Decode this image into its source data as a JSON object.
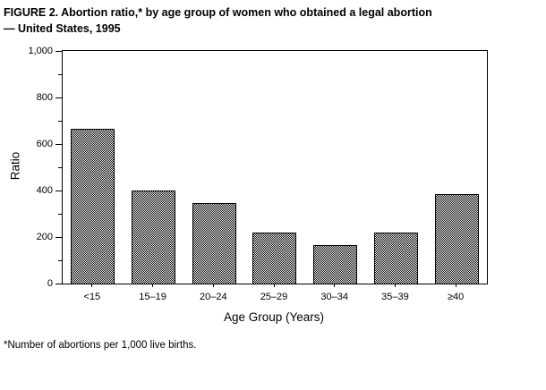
{
  "figure": {
    "title": "FIGURE 2. Abortion ratio,* by age group of women who obtained a legal abortion\n— United States, 1995",
    "footnote": "*Number of abortions per 1,000 live births."
  },
  "chart_data": {
    "type": "bar",
    "title": "FIGURE 2. Abortion ratio,* by age group of women who obtained a legal abortion — United States, 1995",
    "categories": [
      "<15",
      "15–19",
      "20–24",
      "25–29",
      "30–34",
      "35–39",
      "≥40"
    ],
    "values": [
      665,
      400,
      345,
      220,
      165,
      220,
      385
    ],
    "xlabel": "Age Group (Years)",
    "ylabel": "Ratio",
    "ylim": [
      0,
      1000
    ],
    "y_axis": {
      "major_ticks": [
        0,
        200,
        400,
        600,
        800,
        1000
      ],
      "major_tick_labels": [
        "0",
        "200",
        "400",
        "600",
        "800",
        "1,000"
      ],
      "minor_ticks": [
        100,
        300,
        500,
        700,
        900
      ]
    },
    "grid": false,
    "legend": "none",
    "footnote": "*Number of abortions per 1,000 live births.",
    "bar_fill_pattern": "black-white-checkerboard-dither",
    "bar_border_color": "#000000",
    "text_color": "#000000",
    "background_color": "#ffffff"
  }
}
